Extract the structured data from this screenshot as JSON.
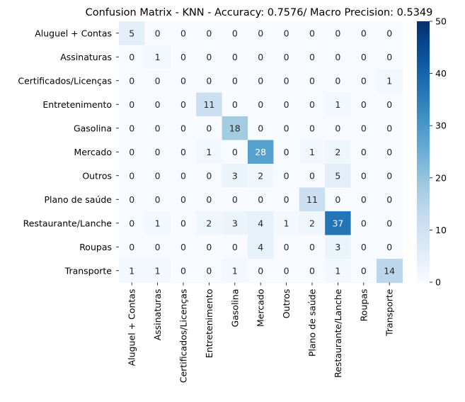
{
  "chart_data": {
    "type": "heatmap",
    "title": "Confusion Matrix - KNN - Accuracy: 0.7576/ Macro Precision: 0.5349",
    "xlabel": "",
    "ylabel": "",
    "rows": [
      "Aluguel + Contas",
      "Assinaturas",
      "Certificados/Licenças",
      "Entretenimento",
      "Gasolina",
      "Mercado",
      "Outros",
      "Plano de saúde",
      "Restaurante/Lanche",
      "Roupas",
      "Transporte"
    ],
    "columns": [
      "Aluguel + Contas",
      "Assinaturas",
      "Certificados/Licenças",
      "Entretenimento",
      "Gasolina",
      "Mercado",
      "Outros",
      "Plano de saúde",
      "Restaurante/Lanche",
      "Roupas",
      "Transporte"
    ],
    "values": [
      [
        5,
        0,
        0,
        0,
        0,
        0,
        0,
        0,
        0,
        0,
        0
      ],
      [
        0,
        1,
        0,
        0,
        0,
        0,
        0,
        0,
        0,
        0,
        0
      ],
      [
        0,
        0,
        0,
        0,
        0,
        0,
        0,
        0,
        0,
        0,
        1
      ],
      [
        0,
        0,
        0,
        11,
        0,
        0,
        0,
        0,
        1,
        0,
        0
      ],
      [
        0,
        0,
        0,
        0,
        18,
        0,
        0,
        0,
        0,
        0,
        0
      ],
      [
        0,
        0,
        0,
        1,
        0,
        28,
        0,
        1,
        2,
        0,
        0
      ],
      [
        0,
        0,
        0,
        0,
        3,
        2,
        0,
        0,
        5,
        0,
        0
      ],
      [
        0,
        0,
        0,
        0,
        0,
        0,
        0,
        11,
        0,
        0,
        0
      ],
      [
        0,
        1,
        0,
        2,
        3,
        4,
        1,
        2,
        37,
        0,
        0
      ],
      [
        0,
        0,
        0,
        0,
        0,
        4,
        0,
        0,
        3,
        0,
        0
      ],
      [
        1,
        1,
        0,
        0,
        1,
        0,
        0,
        0,
        1,
        0,
        14
      ]
    ],
    "colorbar": {
      "min": 0,
      "max": 50,
      "ticks": [
        0,
        10,
        20,
        30,
        40,
        50
      ],
      "colormap": "Blues"
    },
    "grid": false,
    "legend": "colorbar-right"
  }
}
